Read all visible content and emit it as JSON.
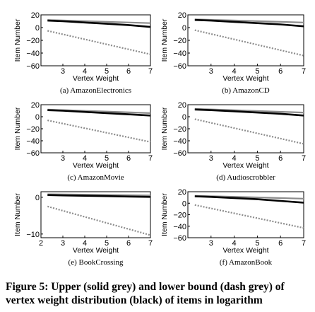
{
  "figure": {
    "caption": "Figure 5: Upper (solid grey) and lower bound (dash grey) of vertex weight distribution (black) of items in logarithm",
    "colors": {
      "upper": "#8c8c8c",
      "lower": "#8c8c8c",
      "distribution": "#000000"
    }
  },
  "chart_data": [
    {
      "type": "line",
      "subcaption": "(a) AmazonElectronics",
      "xlabel": "Vertex Weight",
      "ylabel": "Item Number",
      "xlim": [
        2,
        7
      ],
      "ylim": [
        -60,
        20
      ],
      "xticks": [
        "3",
        "4",
        "5",
        "6",
        "7"
      ],
      "yticks": [
        "20",
        "0",
        "−20",
        "−40",
        "−60"
      ],
      "series": [
        {
          "role": "upper",
          "style": "solid",
          "color": "#8c8c8c",
          "x": [
            2.3,
            7.0
          ],
          "y": [
            12,
            7
          ]
        },
        {
          "role": "distribution",
          "style": "solid",
          "color": "#000000",
          "x": [
            2.3,
            3.0,
            4.0,
            5.0,
            6.0,
            7.0
          ],
          "y": [
            11,
            10,
            8,
            6,
            4,
            1
          ]
        },
        {
          "role": "lower",
          "style": "dashed",
          "color": "#8c8c8c",
          "x": [
            2.3,
            7.0
          ],
          "y": [
            -5,
            -42
          ]
        }
      ]
    },
    {
      "type": "line",
      "subcaption": "(b) AmazonCD",
      "xlabel": "Vertex Weight",
      "ylabel": "Item Number",
      "xlim": [
        2,
        7
      ],
      "ylim": [
        -60,
        20
      ],
      "xticks": [
        "3",
        "4",
        "5",
        "6",
        "7"
      ],
      "yticks": [
        "20",
        "0",
        "−20",
        "−40",
        "−60"
      ],
      "series": [
        {
          "role": "upper",
          "style": "solid",
          "color": "#8c8c8c",
          "x": [
            2.3,
            7.0
          ],
          "y": [
            13,
            8
          ]
        },
        {
          "role": "distribution",
          "style": "solid",
          "color": "#000000",
          "x": [
            2.3,
            3.0,
            4.0,
            5.0,
            6.0,
            7.0
          ],
          "y": [
            12,
            11,
            9,
            7,
            5,
            2
          ]
        },
        {
          "role": "lower",
          "style": "dashed",
          "color": "#8c8c8c",
          "x": [
            2.3,
            7.0
          ],
          "y": [
            -4,
            -44
          ]
        }
      ]
    },
    {
      "type": "line",
      "subcaption": "(c) AmazonMovie",
      "xlabel": "Vertex Weight",
      "ylabel": "Item Number",
      "xlim": [
        2,
        7
      ],
      "ylim": [
        -60,
        20
      ],
      "xticks": [
        "3",
        "4",
        "5",
        "6",
        "7"
      ],
      "yticks": [
        "20",
        "0",
        "−20",
        "−40",
        "−60"
      ],
      "series": [
        {
          "role": "upper",
          "style": "solid",
          "color": "#8c8c8c",
          "x": [
            2.3,
            7.0
          ],
          "y": [
            12,
            6
          ]
        },
        {
          "role": "distribution",
          "style": "solid",
          "color": "#000000",
          "x": [
            2.3,
            3.0,
            4.0,
            5.0,
            6.0,
            7.0
          ],
          "y": [
            11,
            10,
            8,
            6,
            4,
            2
          ]
        },
        {
          "role": "lower",
          "style": "dashed",
          "color": "#8c8c8c",
          "x": [
            2.3,
            7.0
          ],
          "y": [
            -6,
            -42
          ]
        }
      ]
    },
    {
      "type": "line",
      "subcaption": "(d) Audioscrobbler",
      "xlabel": "Vertex Weight",
      "ylabel": "Item Number",
      "xlim": [
        2,
        7
      ],
      "ylim": [
        -60,
        20
      ],
      "xticks": [
        "3",
        "4",
        "5",
        "6",
        "7"
      ],
      "yticks": [
        "20",
        "0",
        "−20",
        "−40",
        "−60"
      ],
      "series": [
        {
          "role": "upper",
          "style": "solid",
          "color": "#8c8c8c",
          "x": [
            2.3,
            7.0
          ],
          "y": [
            13,
            7
          ]
        },
        {
          "role": "distribution",
          "style": "solid",
          "color": "#000000",
          "x": [
            2.3,
            3.0,
            4.0,
            5.0,
            6.0,
            7.0
          ],
          "y": [
            12,
            11,
            9,
            7,
            5,
            2
          ]
        },
        {
          "role": "lower",
          "style": "dashed",
          "color": "#8c8c8c",
          "x": [
            2.3,
            7.0
          ],
          "y": [
            -4,
            -45
          ]
        }
      ]
    },
    {
      "type": "line",
      "subcaption": "(e) BookCrossing",
      "xlabel": "Vertex Weight",
      "ylabel": "Item Number",
      "xlim": [
        2,
        7
      ],
      "ylim": [
        -11,
        1.5
      ],
      "xticks": [
        "2",
        "3",
        "4",
        "5",
        "6",
        "7"
      ],
      "yticks": [
        "0",
        "−10"
      ],
      "series": [
        {
          "role": "upper",
          "style": "solid",
          "color": "#8c8c8c",
          "x": [
            2.3,
            7.0
          ],
          "y": [
            0.8,
            0.5
          ]
        },
        {
          "role": "distribution",
          "style": "solid",
          "color": "#000000",
          "x": [
            2.3,
            3.0,
            4.0,
            5.0,
            6.0,
            7.0
          ],
          "y": [
            0.6,
            0.5,
            0.4,
            0.3,
            0.2,
            0.1
          ]
        },
        {
          "role": "lower",
          "style": "dashed",
          "color": "#8c8c8c",
          "x": [
            2.3,
            7.0
          ],
          "y": [
            -2.5,
            -10.3
          ]
        }
      ]
    },
    {
      "type": "line",
      "subcaption": "(f) AmazonBook",
      "xlabel": "Vertex Weight",
      "ylabel": "Item Number",
      "xlim": [
        2,
        7
      ],
      "ylim": [
        -60,
        20
      ],
      "xticks": [
        "3",
        "4",
        "5",
        "6",
        "7"
      ],
      "yticks": [
        "20",
        "0",
        "−20",
        "−40",
        "−60"
      ],
      "series": [
        {
          "role": "upper",
          "style": "solid",
          "color": "#8c8c8c",
          "x": [
            2.3,
            7.0
          ],
          "y": [
            13,
            8
          ]
        },
        {
          "role": "distribution",
          "style": "solid",
          "color": "#000000",
          "x": [
            2.3,
            3.0,
            4.0,
            5.0,
            6.0,
            7.0
          ],
          "y": [
            12,
            11,
            9,
            7,
            4,
            1
          ]
        },
        {
          "role": "lower",
          "style": "dashed",
          "color": "#8c8c8c",
          "x": [
            2.3,
            7.0
          ],
          "y": [
            -3,
            -43
          ]
        }
      ]
    }
  ]
}
